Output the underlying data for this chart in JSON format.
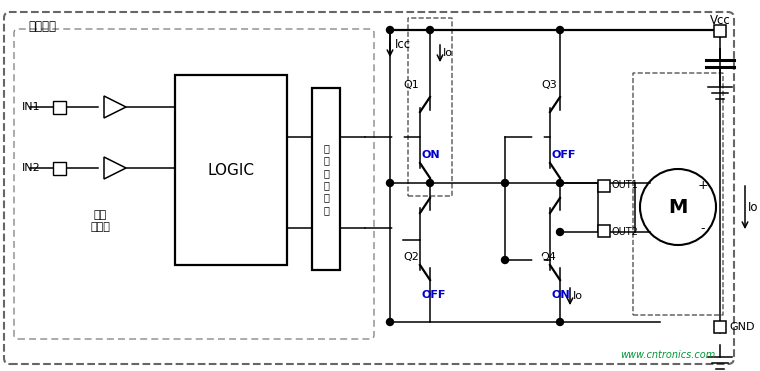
{
  "bg_color": "#ffffff",
  "line_color": "#000000",
  "blue_color": "#0000cc",
  "watermark": "www.cntronics.com",
  "labels": {
    "xiao_xinhao": "小信号部",
    "IN1": "IN1",
    "IN2": "IN2",
    "cidai": "磁带",
    "huanchongqi": "缓冲器",
    "LOGIC": "LOGIC",
    "fangzhi": "防\n止\n同\n时\n导\n通",
    "Q1": "Q1",
    "Q2": "Q2",
    "Q3": "Q3",
    "Q4": "Q4",
    "Icc": "Icc",
    "Io": "Io",
    "ON": "ON",
    "OFF": "OFF",
    "Vcc": "Vcc",
    "GND": "GND",
    "OUT1": "OUT1",
    "OUT2": "OUT2",
    "M": "M",
    "plus": "+",
    "minus": "-"
  },
  "figsize": [
    7.6,
    3.71
  ],
  "dpi": 100
}
